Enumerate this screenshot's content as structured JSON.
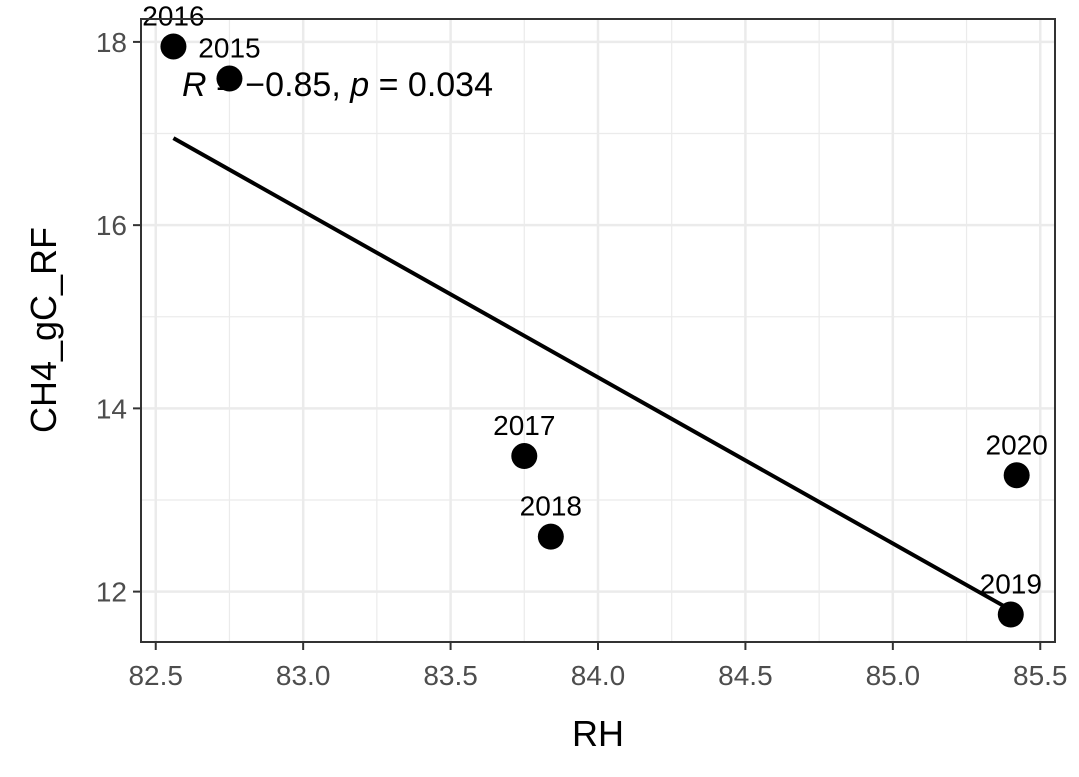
{
  "chart_data": {
    "type": "scatter",
    "xlabel": "RH",
    "ylabel": "CH4_gC_RF",
    "xlim": [
      82.45,
      85.55
    ],
    "ylim": [
      11.45,
      18.25
    ],
    "xticks": [
      82.5,
      83.0,
      83.5,
      84.0,
      84.5,
      85.0,
      85.5
    ],
    "xtick_labels": [
      "82.5",
      "83.0",
      "83.5",
      "84.0",
      "84.5",
      "85.0",
      "85.5"
    ],
    "yticks": [
      12,
      14,
      16,
      18
    ],
    "ytick_labels": [
      "12",
      "14",
      "16",
      "18"
    ],
    "grid": true,
    "points": [
      {
        "label": "2016",
        "x": 82.56,
        "y": 17.95
      },
      {
        "label": "2015",
        "x": 82.75,
        "y": 17.6
      },
      {
        "label": "2017",
        "x": 83.75,
        "y": 13.48
      },
      {
        "label": "2018",
        "x": 83.84,
        "y": 12.6
      },
      {
        "label": "2020",
        "x": 85.42,
        "y": 13.27
      },
      {
        "label": "2019",
        "x": 85.4,
        "y": 11.75
      }
    ],
    "fit_line": {
      "x": [
        82.56,
        85.4
      ],
      "y": [
        16.95,
        11.8
      ]
    },
    "annotation": {
      "r_symbol": "R",
      "r_text": " = −0.85, ",
      "p_symbol": "p",
      "p_text": " = 0.034"
    }
  },
  "colors": {
    "points": "#000000",
    "line": "#000000",
    "grid": "#ebebeb",
    "panel_border": "#333333"
  }
}
